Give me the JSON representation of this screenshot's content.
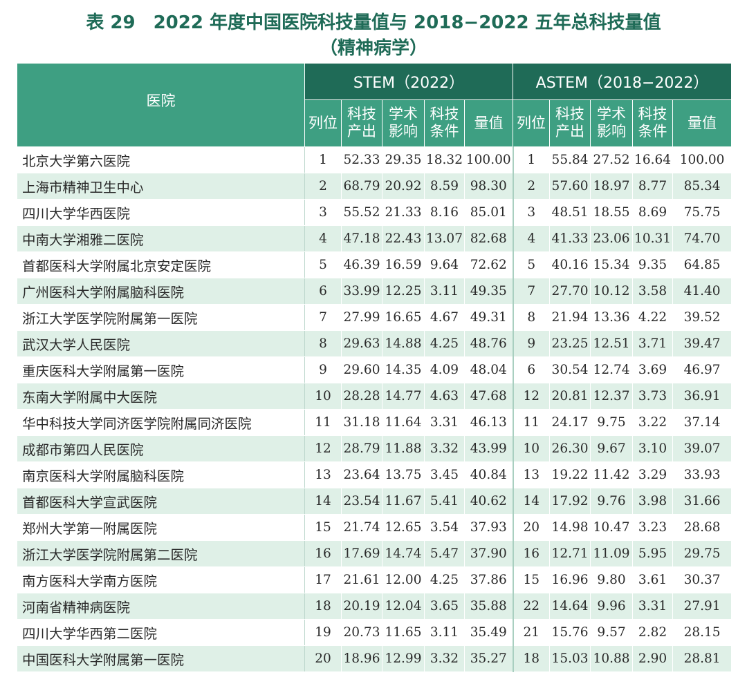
{
  "title_line1": "表 29　2022 年度中国医院科技量值与 2018−2022 五年总科技量值",
  "title_line2": "（精神病学）",
  "table": {
    "hospital_header": "医院",
    "group1_header": "STEM（2022）",
    "group2_header": "ASTEM（2018−2022）",
    "sub_headers": [
      "列位",
      "科技\n产出",
      "学术\n影响",
      "科技\n条件",
      "量值"
    ],
    "rows": [
      {
        "name": "北京大学第六医院",
        "s": [
          "1",
          "52.33",
          "29.35",
          "18.32",
          "100.00"
        ],
        "a": [
          "1",
          "55.84",
          "27.52",
          "16.64",
          "100.00"
        ]
      },
      {
        "name": "上海市精神卫生中心",
        "s": [
          "2",
          "68.79",
          "20.92",
          "8.59",
          "98.30"
        ],
        "a": [
          "2",
          "57.60",
          "18.97",
          "8.77",
          "85.34"
        ]
      },
      {
        "name": "四川大学华西医院",
        "s": [
          "3",
          "55.52",
          "21.33",
          "8.16",
          "85.01"
        ],
        "a": [
          "3",
          "48.51",
          "18.55",
          "8.69",
          "75.75"
        ]
      },
      {
        "name": "中南大学湘雅二医院",
        "s": [
          "4",
          "47.18",
          "22.43",
          "13.07",
          "82.68"
        ],
        "a": [
          "4",
          "41.33",
          "23.06",
          "10.31",
          "74.70"
        ]
      },
      {
        "name": "首都医科大学附属北京安定医院",
        "s": [
          "5",
          "46.39",
          "16.59",
          "9.64",
          "72.62"
        ],
        "a": [
          "5",
          "40.16",
          "15.34",
          "9.35",
          "64.85"
        ]
      },
      {
        "name": "广州医科大学附属脑科医院",
        "s": [
          "6",
          "33.99",
          "12.25",
          "3.11",
          "49.35"
        ],
        "a": [
          "7",
          "27.70",
          "10.12",
          "3.58",
          "41.40"
        ]
      },
      {
        "name": "浙江大学医学院附属第一医院",
        "s": [
          "7",
          "27.99",
          "16.65",
          "4.67",
          "49.31"
        ],
        "a": [
          "8",
          "21.94",
          "13.36",
          "4.22",
          "39.52"
        ]
      },
      {
        "name": "武汉大学人民医院",
        "s": [
          "8",
          "29.63",
          "14.88",
          "4.25",
          "48.76"
        ],
        "a": [
          "9",
          "23.25",
          "12.51",
          "3.71",
          "39.47"
        ]
      },
      {
        "name": "重庆医科大学附属第一医院",
        "s": [
          "9",
          "29.60",
          "14.35",
          "4.09",
          "48.04"
        ],
        "a": [
          "6",
          "30.54",
          "12.74",
          "3.69",
          "46.97"
        ]
      },
      {
        "name": "东南大学附属中大医院",
        "s": [
          "10",
          "28.28",
          "14.77",
          "4.63",
          "47.68"
        ],
        "a": [
          "12",
          "20.81",
          "12.37",
          "3.73",
          "36.91"
        ]
      },
      {
        "name": "华中科技大学同济医学院附属同济医院",
        "s": [
          "11",
          "31.18",
          "11.64",
          "3.31",
          "46.13"
        ],
        "a": [
          "11",
          "24.17",
          "9.75",
          "3.22",
          "37.14"
        ]
      },
      {
        "name": "成都市第四人民医院",
        "s": [
          "12",
          "28.79",
          "11.88",
          "3.32",
          "43.99"
        ],
        "a": [
          "10",
          "26.30",
          "9.67",
          "3.10",
          "39.07"
        ]
      },
      {
        "name": "南京医科大学附属脑科医院",
        "s": [
          "13",
          "23.64",
          "13.75",
          "3.45",
          "40.84"
        ],
        "a": [
          "13",
          "19.22",
          "11.42",
          "3.29",
          "33.93"
        ]
      },
      {
        "name": "首都医科大学宣武医院",
        "s": [
          "14",
          "23.54",
          "11.67",
          "5.41",
          "40.62"
        ],
        "a": [
          "14",
          "17.92",
          "9.76",
          "3.98",
          "31.66"
        ]
      },
      {
        "name": "郑州大学第一附属医院",
        "s": [
          "15",
          "21.74",
          "12.65",
          "3.54",
          "37.93"
        ],
        "a": [
          "20",
          "14.98",
          "10.47",
          "3.23",
          "28.68"
        ]
      },
      {
        "name": "浙江大学医学院附属第二医院",
        "s": [
          "16",
          "17.69",
          "14.74",
          "5.47",
          "37.90"
        ],
        "a": [
          "16",
          "12.71",
          "11.09",
          "5.95",
          "29.75"
        ]
      },
      {
        "name": "南方医科大学南方医院",
        "s": [
          "17",
          "21.61",
          "12.00",
          "4.25",
          "37.86"
        ],
        "a": [
          "15",
          "16.96",
          "9.80",
          "3.61",
          "30.37"
        ]
      },
      {
        "name": "河南省精神病医院",
        "s": [
          "18",
          "20.19",
          "12.04",
          "3.65",
          "35.88"
        ],
        "a": [
          "22",
          "14.64",
          "9.96",
          "3.31",
          "27.91"
        ]
      },
      {
        "name": "四川大学华西第二医院",
        "s": [
          "19",
          "20.73",
          "11.65",
          "3.11",
          "35.49"
        ],
        "a": [
          "21",
          "15.76",
          "9.57",
          "2.82",
          "28.15"
        ]
      },
      {
        "name": "中国医科大学附属第一医院",
        "s": [
          "20",
          "18.96",
          "12.99",
          "3.32",
          "35.27"
        ],
        "a": [
          "18",
          "15.03",
          "10.88",
          "2.90",
          "28.81"
        ]
      }
    ]
  },
  "colors": {
    "title": "#1f6b57",
    "header_dark": "#1f6b57",
    "header_light": "#3e9f82",
    "row_alt": "#dff0e7"
  }
}
